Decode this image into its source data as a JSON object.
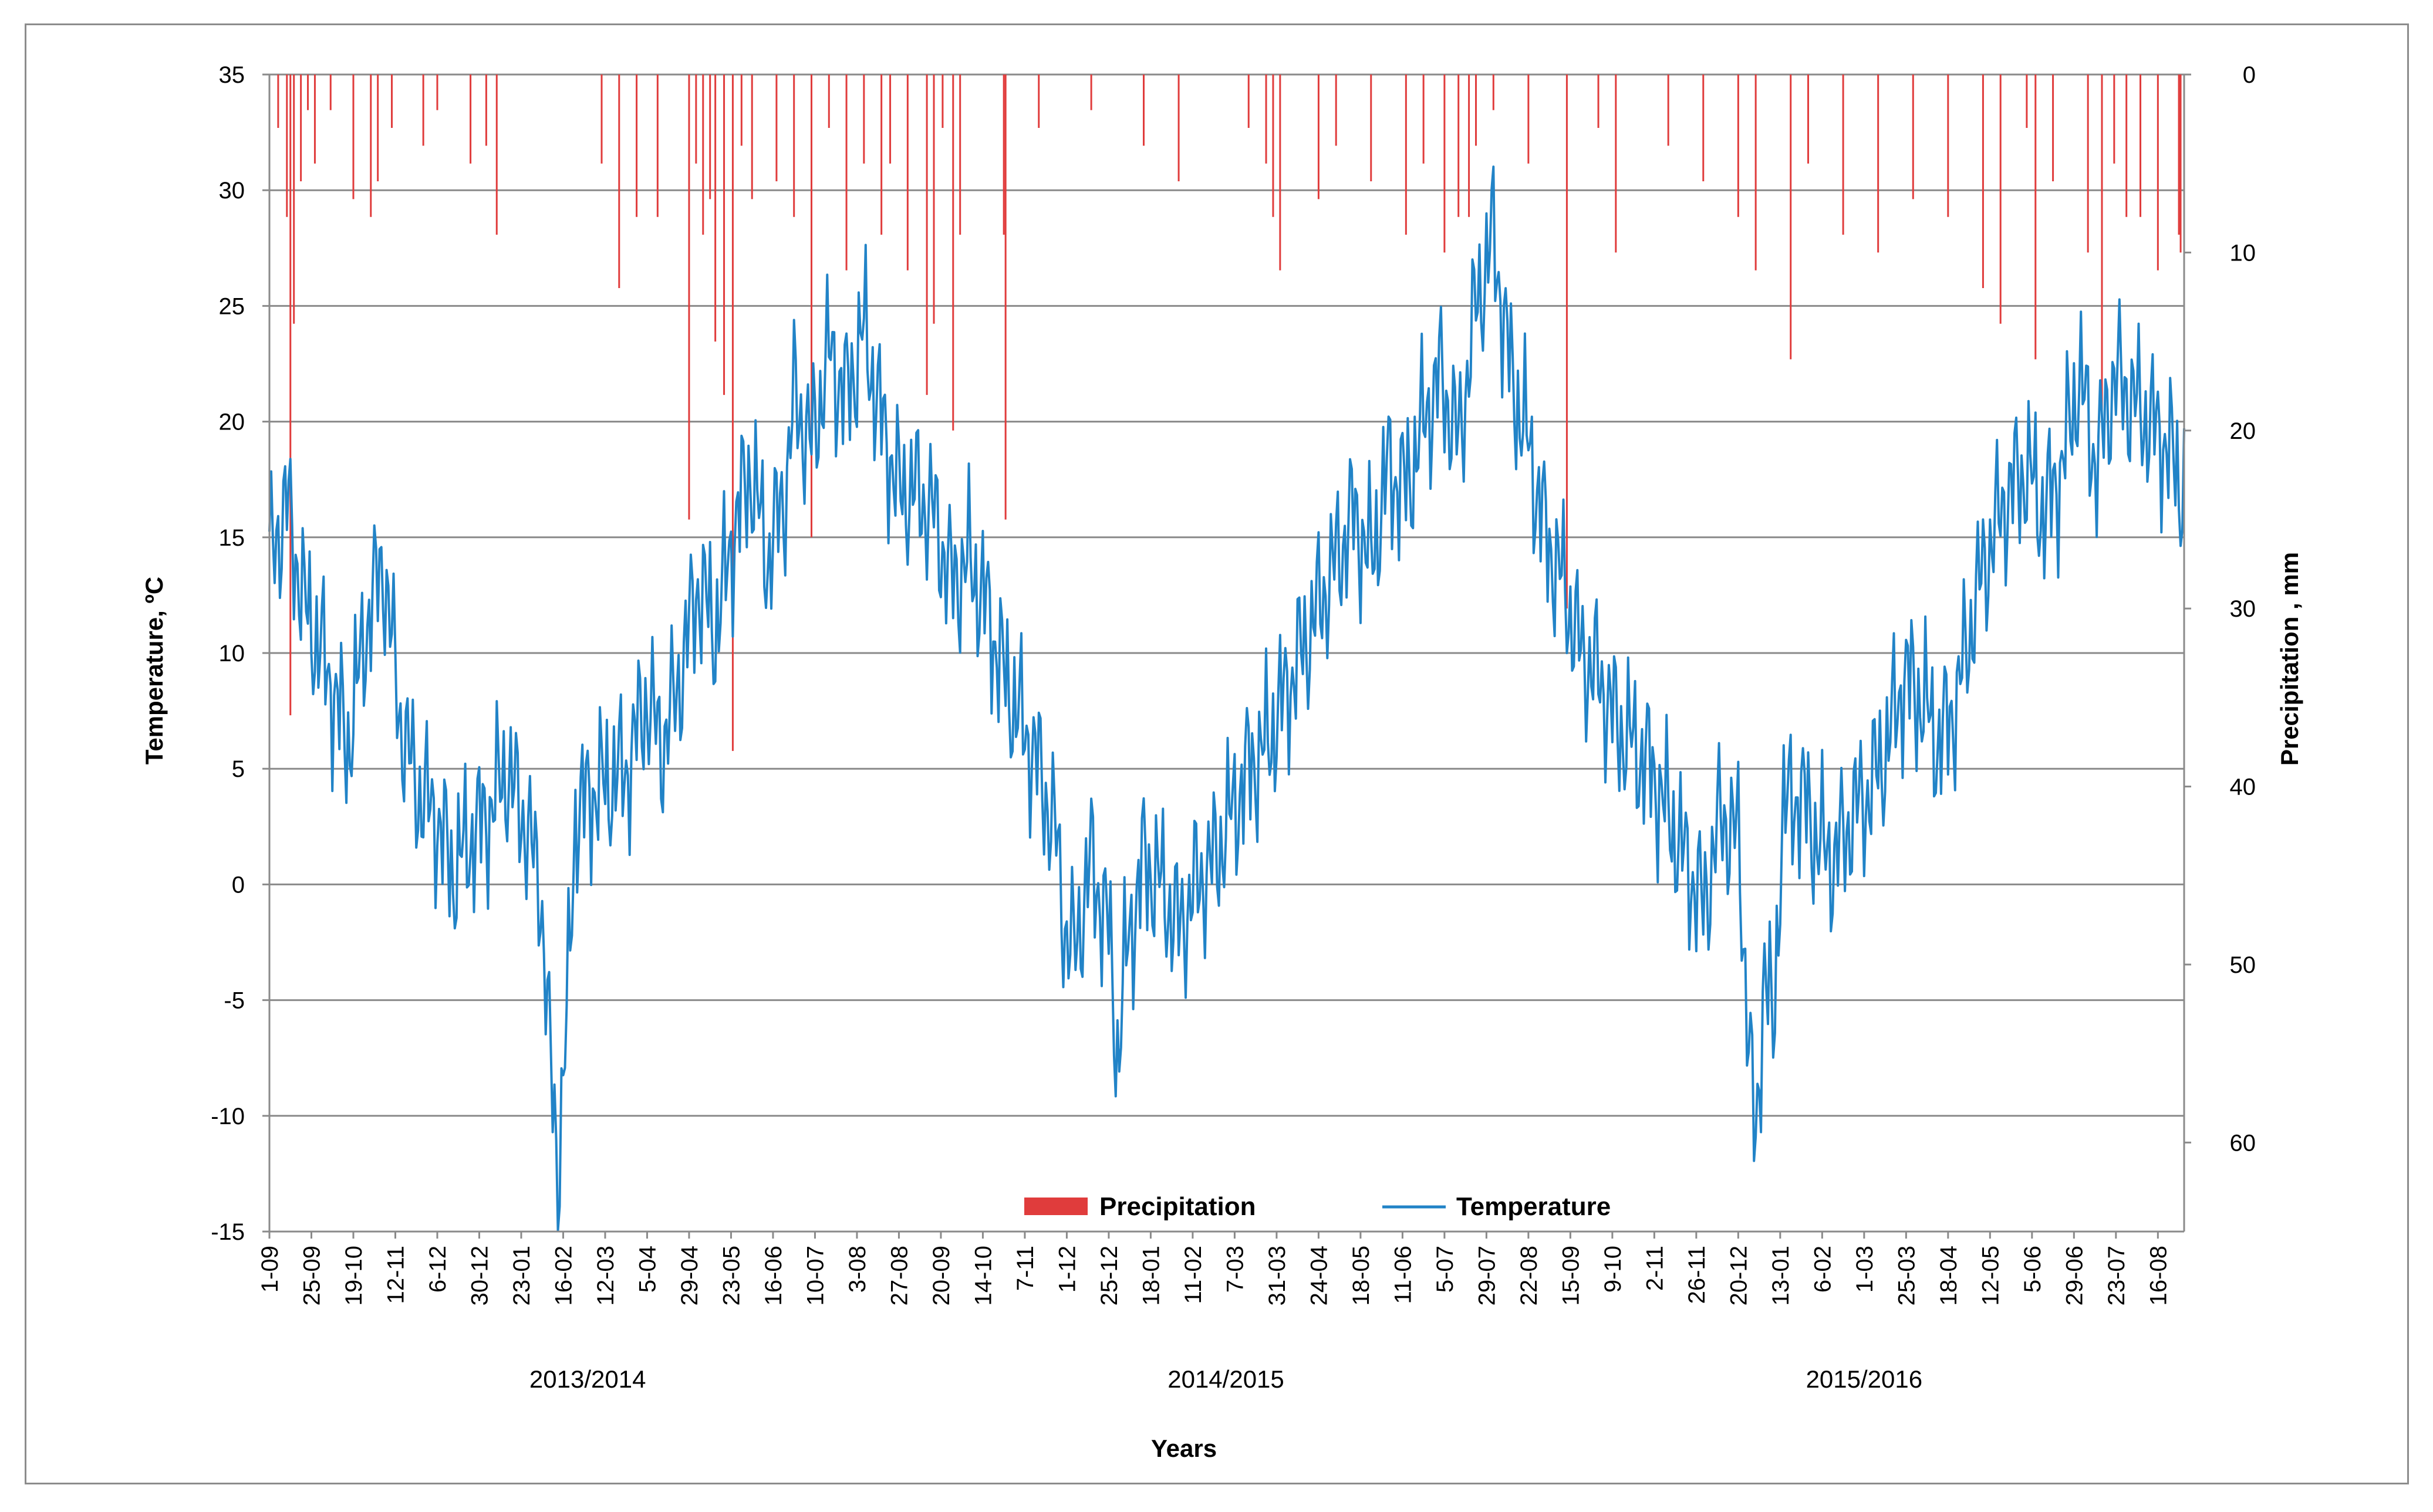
{
  "chart_data": {
    "type": "bar+line",
    "title": "",
    "xlabel": "Years",
    "ylabel_left": "Temperature, ºC",
    "ylabel_right": "Precipitation , mm",
    "y_left_range": [
      -15,
      35
    ],
    "y_left_ticks": [
      "35",
      "30",
      "25",
      "20",
      "15",
      "10",
      "5",
      "0",
      "-5",
      "-10",
      "-15"
    ],
    "y_right_range": [
      0,
      65
    ],
    "y_right_inverted": true,
    "y_right_ticks": [
      "0",
      "10",
      "20",
      "30",
      "40",
      "50",
      "60"
    ],
    "gridlines": true,
    "legend_position": "bottom-center",
    "seasons": [
      "2013/2014",
      "2014/2015",
      "2015/2016"
    ],
    "x_tick_labels": [
      "1-09",
      "25-09",
      "19-10",
      "12-11",
      "6-12",
      "30-12",
      "23-01",
      "16-02",
      "12-03",
      "5-04",
      "29-04",
      "23-05",
      "16-06",
      "10-07",
      "3-08",
      "27-08",
      "20-09",
      "14-10",
      "7-11",
      "1-12",
      "25-12",
      "18-01",
      "11-02",
      "7-03",
      "31-03",
      "24-04",
      "18-05",
      "11-06",
      "5-07",
      "29-07",
      "22-08",
      "15-09",
      "9-10",
      "2-11",
      "26-11",
      "20-12",
      "13-01",
      "6-02",
      "1-03",
      "25-03",
      "18-04",
      "12-05",
      "5-06",
      "29-06",
      "23-07",
      "16-08"
    ],
    "x_tick_days": [
      0,
      24,
      48,
      72,
      96,
      120,
      144,
      168,
      192,
      216,
      240,
      264,
      288,
      312,
      336,
      360,
      384,
      408,
      432,
      456,
      480,
      504,
      528,
      552,
      576,
      600,
      624,
      648,
      672,
      696,
      720,
      744,
      768,
      792,
      816,
      840,
      864,
      888,
      912,
      936,
      960,
      984,
      1008,
      1032,
      1056,
      1080
    ],
    "total_days": 1096,
    "series": [
      {
        "name": "Precipitation",
        "type": "bar",
        "axis": "right",
        "unit": "mm",
        "color": "#e03c3c",
        "values_by_day": [
          [
            5,
            3
          ],
          [
            10,
            8
          ],
          [
            12,
            36
          ],
          [
            14,
            14
          ],
          [
            18,
            6
          ],
          [
            22,
            2
          ],
          [
            26,
            5
          ],
          [
            35,
            2
          ],
          [
            48,
            7
          ],
          [
            58,
            8
          ],
          [
            62,
            6
          ],
          [
            70,
            3
          ],
          [
            88,
            4
          ],
          [
            96,
            2
          ],
          [
            115,
            5
          ],
          [
            124,
            4
          ],
          [
            130,
            9
          ],
          [
            190,
            5
          ],
          [
            200,
            12
          ],
          [
            210,
            8
          ],
          [
            222,
            8
          ],
          [
            240,
            25
          ],
          [
            244,
            5
          ],
          [
            248,
            9
          ],
          [
            252,
            7
          ],
          [
            255,
            15
          ],
          [
            260,
            18
          ],
          [
            265,
            38
          ],
          [
            270,
            4
          ],
          [
            276,
            7
          ],
          [
            290,
            6
          ],
          [
            300,
            8
          ],
          [
            310,
            26
          ],
          [
            320,
            3
          ],
          [
            330,
            11
          ],
          [
            340,
            5
          ],
          [
            350,
            9
          ],
          [
            355,
            5
          ],
          [
            365,
            11
          ],
          [
            376,
            18
          ],
          [
            380,
            14
          ],
          [
            385,
            3
          ],
          [
            391,
            20
          ],
          [
            395,
            9
          ],
          [
            420,
            9
          ],
          [
            421,
            25
          ],
          [
            440,
            3
          ],
          [
            470,
            2
          ],
          [
            500,
            4
          ],
          [
            520,
            6
          ],
          [
            560,
            3
          ],
          [
            570,
            5
          ],
          [
            574,
            8
          ],
          [
            578,
            11
          ],
          [
            600,
            7
          ],
          [
            610,
            4
          ],
          [
            630,
            6
          ],
          [
            650,
            9
          ],
          [
            660,
            5
          ],
          [
            672,
            10
          ],
          [
            680,
            8
          ],
          [
            686,
            8
          ],
          [
            690,
            4
          ],
          [
            700,
            2
          ],
          [
            720,
            5
          ],
          [
            742,
            30
          ],
          [
            760,
            3
          ],
          [
            770,
            10
          ],
          [
            800,
            4
          ],
          [
            820,
            6
          ],
          [
            840,
            8
          ],
          [
            850,
            11
          ],
          [
            870,
            16
          ],
          [
            880,
            5
          ],
          [
            900,
            9
          ],
          [
            920,
            10
          ],
          [
            940,
            7
          ],
          [
            960,
            8
          ],
          [
            980,
            12
          ],
          [
            990,
            14
          ],
          [
            1005,
            3
          ],
          [
            1010,
            16
          ],
          [
            1020,
            6
          ],
          [
            1040,
            10
          ],
          [
            1048,
            19
          ],
          [
            1055,
            5
          ],
          [
            1062,
            8
          ],
          [
            1070,
            8
          ],
          [
            1080,
            11
          ],
          [
            1092,
            9
          ],
          [
            1093,
            10
          ]
        ]
      },
      {
        "name": "Temperature",
        "type": "line",
        "axis": "left",
        "unit": "ºC",
        "color": "#2183c7",
        "anchors_by_day": [
          [
            0,
            14
          ],
          [
            10,
            16.5
          ],
          [
            20,
            12
          ],
          [
            30,
            10
          ],
          [
            45,
            6
          ],
          [
            55,
            11
          ],
          [
            65,
            14
          ],
          [
            75,
            7
          ],
          [
            85,
            4
          ],
          [
            95,
            3
          ],
          [
            105,
            0.5
          ],
          [
            115,
            2
          ],
          [
            125,
            3
          ],
          [
            135,
            5
          ],
          [
            145,
            3
          ],
          [
            155,
            0
          ],
          [
            160,
            -7
          ],
          [
            165,
            -12.3
          ],
          [
            170,
            -6
          ],
          [
            175,
            3
          ],
          [
            185,
            4
          ],
          [
            195,
            4.5
          ],
          [
            205,
            5
          ],
          [
            215,
            8
          ],
          [
            225,
            6
          ],
          [
            235,
            9
          ],
          [
            245,
            13
          ],
          [
            255,
            11
          ],
          [
            265,
            15
          ],
          [
            275,
            18
          ],
          [
            285,
            14
          ],
          [
            295,
            17
          ],
          [
            300,
            21
          ],
          [
            310,
            19
          ],
          [
            320,
            23
          ],
          [
            330,
            21
          ],
          [
            340,
            24
          ],
          [
            350,
            20
          ],
          [
            360,
            17
          ],
          [
            370,
            17
          ],
          [
            380,
            16
          ],
          [
            390,
            13
          ],
          [
            400,
            14
          ],
          [
            410,
            12
          ],
          [
            420,
            9
          ],
          [
            430,
            7
          ],
          [
            440,
            5
          ],
          [
            450,
            2
          ],
          [
            455,
            -2
          ],
          [
            460,
            -3
          ],
          [
            470,
            1
          ],
          [
            480,
            -2
          ],
          [
            485,
            -7.5
          ],
          [
            490,
            -3
          ],
          [
            500,
            1
          ],
          [
            510,
            0
          ],
          [
            520,
            -2
          ],
          [
            530,
            0
          ],
          [
            540,
            1
          ],
          [
            550,
            3
          ],
          [
            560,
            5
          ],
          [
            570,
            6
          ],
          [
            580,
            8
          ],
          [
            590,
            10
          ],
          [
            600,
            12
          ],
          [
            610,
            14
          ],
          [
            620,
            16
          ],
          [
            630,
            14
          ],
          [
            640,
            18
          ],
          [
            650,
            17
          ],
          [
            660,
            20
          ],
          [
            670,
            22
          ],
          [
            680,
            19
          ],
          [
            690,
            25
          ],
          [
            700,
            28
          ],
          [
            710,
            22
          ],
          [
            720,
            19
          ],
          [
            730,
            15
          ],
          [
            740,
            13
          ],
          [
            750,
            10
          ],
          [
            760,
            9
          ],
          [
            770,
            7
          ],
          [
            780,
            6
          ],
          [
            790,
            5
          ],
          [
            800,
            3
          ],
          [
            810,
            1
          ],
          [
            820,
            -1
          ],
          [
            830,
            3
          ],
          [
            840,
            2
          ],
          [
            845,
            -5
          ],
          [
            850,
            -12
          ],
          [
            855,
            -3
          ],
          [
            860,
            -7
          ],
          [
            865,
            3
          ],
          [
            875,
            4
          ],
          [
            885,
            2
          ],
          [
            895,
            1
          ],
          [
            905,
            3
          ],
          [
            915,
            4
          ],
          [
            925,
            6
          ],
          [
            935,
            9
          ],
          [
            945,
            8
          ],
          [
            955,
            6
          ],
          [
            965,
            8
          ],
          [
            975,
            12
          ],
          [
            985,
            15
          ],
          [
            995,
            17
          ],
          [
            1005,
            18
          ],
          [
            1015,
            16
          ],
          [
            1025,
            18
          ],
          [
            1035,
            22
          ],
          [
            1045,
            18
          ],
          [
            1055,
            22
          ],
          [
            1065,
            21
          ],
          [
            1075,
            20
          ],
          [
            1085,
            19
          ],
          [
            1095,
            17
          ]
        ]
      }
    ],
    "legend": [
      {
        "label": "Precipitation",
        "color": "#e03c3c",
        "shape": "box"
      },
      {
        "label": "Temperature",
        "color": "#2183c7",
        "shape": "line"
      }
    ]
  }
}
